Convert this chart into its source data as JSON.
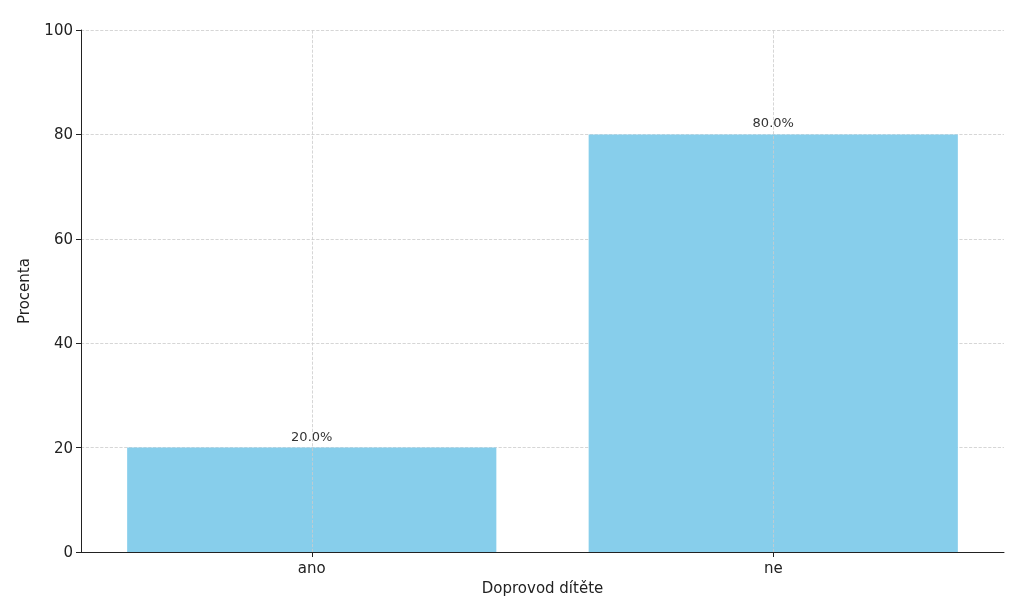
{
  "chart_data": {
    "type": "bar",
    "xlabel": "Doprovod dítěte",
    "ylabel": "Procenta",
    "categories": [
      "ano",
      "ne"
    ],
    "values": [
      20,
      80
    ],
    "color": "#87ceeb",
    "value_labels": [
      "20.0%",
      "80.0%"
    ],
    "ylim": [
      0,
      100
    ],
    "yticks": [
      0,
      20,
      40,
      60,
      80,
      100
    ],
    "grid": true
  }
}
